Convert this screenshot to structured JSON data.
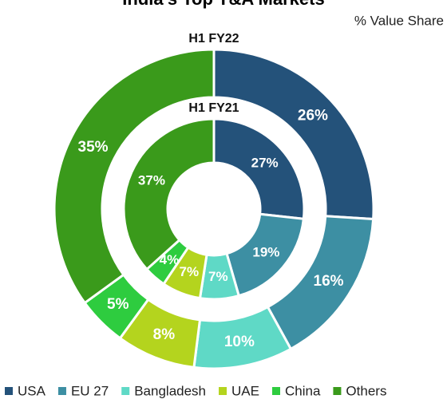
{
  "chart_data": {
    "type": "donut",
    "title": "India's Top T&A Markets",
    "subtitle": "% Value Share",
    "categories": [
      "USA",
      "EU 27",
      "Bangladesh",
      "UAE",
      "China",
      "Others"
    ],
    "colors": [
      "#24527a",
      "#3d8fa3",
      "#5fd9c6",
      "#b4d41e",
      "#2ecc3f",
      "#3a9a1b"
    ],
    "series": [
      {
        "name": "H1 FY22",
        "values": [
          26,
          16,
          10,
          8,
          5,
          35
        ],
        "value_labels": [
          "26%",
          "16%",
          "10%",
          "8%",
          "5%",
          "35%"
        ]
      },
      {
        "name": "H1 FY21",
        "values": [
          27,
          19,
          7,
          7,
          4,
          37
        ],
        "value_labels": [
          "27%",
          "19%",
          "7%",
          "7%",
          "4%",
          "37%"
        ]
      }
    ]
  }
}
